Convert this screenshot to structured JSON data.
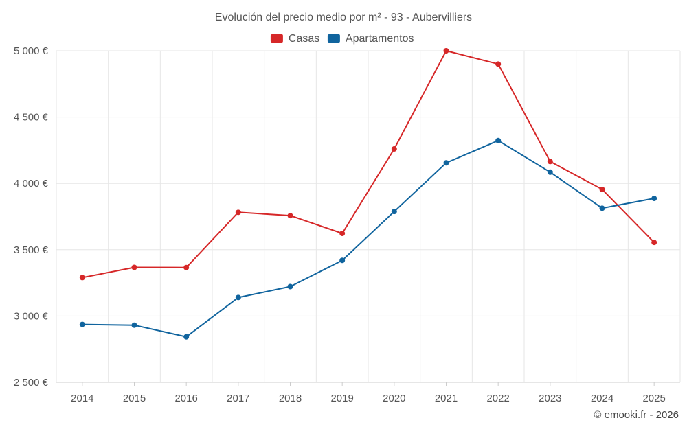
{
  "chart_data": {
    "type": "line",
    "title": "Evolución del precio medio por m² - 93 - Aubervilliers",
    "categories": [
      "2014",
      "2015",
      "2016",
      "2017",
      "2018",
      "2019",
      "2020",
      "2021",
      "2022",
      "2023",
      "2024",
      "2025"
    ],
    "ylim": [
      2500,
      5000
    ],
    "yticks": [
      2500,
      3000,
      3500,
      4000,
      4500,
      5000
    ],
    "ytick_labels": [
      "2 500 €",
      "3 000 €",
      "3 500 €",
      "4 000 €",
      "4 500 €",
      "5 000 €"
    ],
    "legend_position": "top-center",
    "series": [
      {
        "name": "Casas",
        "color": "#d62728",
        "values": [
          3290,
          3367,
          3366,
          3782,
          3757,
          3623,
          4260,
          5000,
          4900,
          4165,
          3955,
          3555
        ]
      },
      {
        "name": "Apartamentos",
        "color": "#10649e",
        "values": [
          2937,
          2931,
          2843,
          3140,
          3222,
          3420,
          3788,
          4155,
          4323,
          4085,
          3813,
          3887
        ]
      }
    ]
  },
  "credit": "© emooki.fr - 2026"
}
